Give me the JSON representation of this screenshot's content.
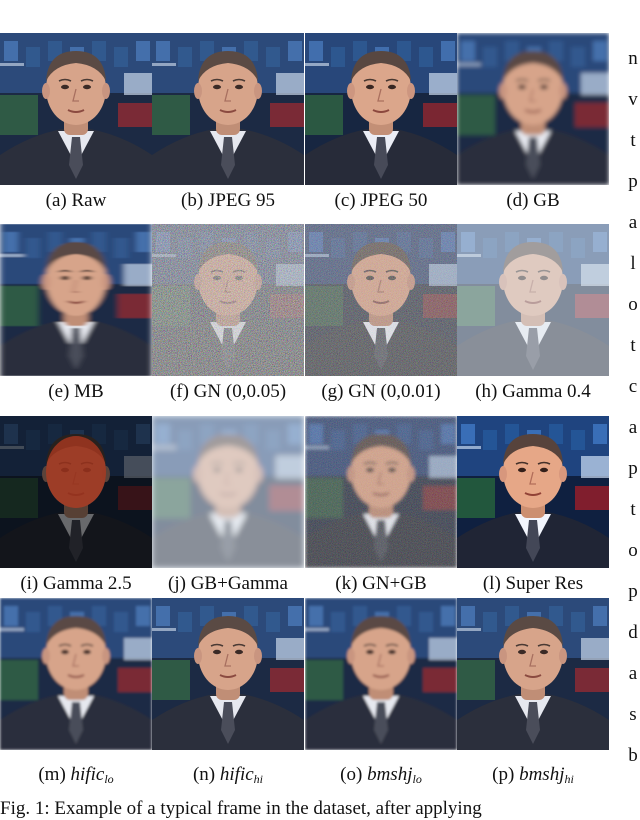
{
  "figure": {
    "caption": "Fig. 1: Example of a typical frame in the dataset, after applying",
    "panels": [
      {
        "label": "(a) Raw",
        "effect": "raw"
      },
      {
        "label": "(b) JPEG 95",
        "effect": "jpeg95"
      },
      {
        "label": "(c) JPEG 50",
        "effect": "jpeg50"
      },
      {
        "label": "(d) GB",
        "effect": "gb"
      },
      {
        "label": "(e) MB",
        "effect": "mb"
      },
      {
        "label": "(f) GN (0,0.05)",
        "effect": "gn05"
      },
      {
        "label": "(g) GN (0,0.01)",
        "effect": "gn01"
      },
      {
        "label": "(h) Gamma 0.4",
        "effect": "gamma04"
      },
      {
        "label": "(i) Gamma 2.5",
        "effect": "gamma25"
      },
      {
        "label": "(j) GB+Gamma",
        "effect": "gbgamma"
      },
      {
        "label": "(k) GN+GB",
        "effect": "gngb"
      },
      {
        "label": "(l) Super Res",
        "effect": "superres"
      },
      {
        "label_prefix": "(m)",
        "label_math": "hific",
        "label_sub": "lo",
        "effect": "hific_lo"
      },
      {
        "label_prefix": "(n)",
        "label_math": "hific",
        "label_sub": "hi",
        "effect": "hific_hi"
      },
      {
        "label_prefix": "(o)",
        "label_math": "bmshj",
        "label_sub": "lo",
        "effect": "bmshj_lo"
      },
      {
        "label_prefix": "(p)",
        "label_math": "bmshj",
        "label_sub": "hi",
        "effect": "bmshj_hi"
      }
    ],
    "column_edge_text": [
      "n",
      "v",
      "t",
      "p",
      "a",
      "l",
      "o",
      "t",
      "c",
      "a",
      "p",
      "t",
      "o",
      "p",
      "d",
      "a",
      "s",
      "b"
    ]
  }
}
